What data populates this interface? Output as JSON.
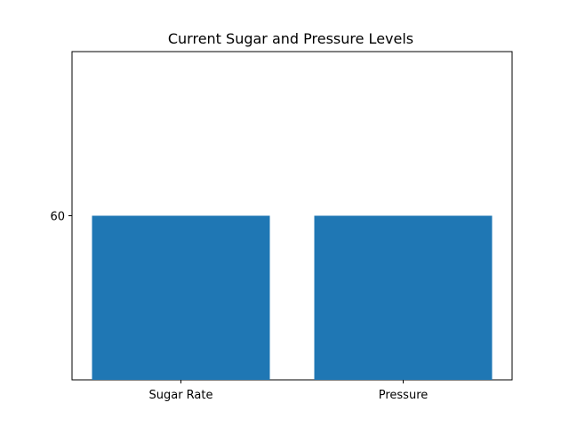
{
  "chart_data": {
    "type": "bar",
    "title": "Current Sugar and Pressure Levels",
    "xlabel": "",
    "ylabel": "",
    "categories": [
      "Sugar Rate",
      "Pressure"
    ],
    "values": [
      60,
      60
    ],
    "ylim": [
      55,
      65
    ],
    "yticks": [
      60
    ],
    "ytick_labels": [
      "60"
    ],
    "grid": false,
    "legend": "none",
    "bar_color": "#1f77b4"
  }
}
